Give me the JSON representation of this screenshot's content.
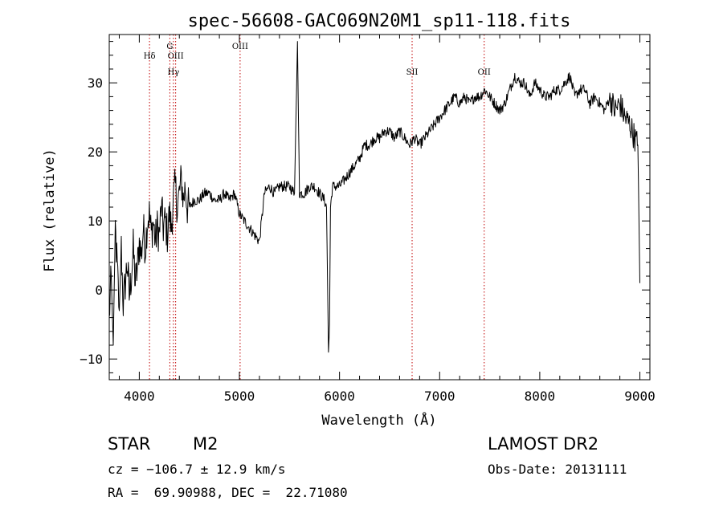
{
  "chart_data": {
    "type": "line",
    "title": "spec-56608-GAC069N20M1_sp11-118.fits",
    "xlabel": "Wavelength (Å)",
    "ylabel": "Flux (relative)",
    "xlim": [
      3700,
      9100
    ],
    "ylim": [
      -13,
      37
    ],
    "x_ticks": [
      4000,
      5000,
      6000,
      7000,
      8000,
      9000
    ],
    "x_tick_labels": [
      "4000",
      "5000",
      "6000",
      "7000",
      "8000",
      "9000"
    ],
    "y_ticks": [
      -10,
      0,
      10,
      20,
      30
    ],
    "y_tick_labels": [
      "−10",
      "0",
      "10",
      "20",
      "30"
    ],
    "grid": false,
    "spectrum": {
      "x": [
        3700,
        3720,
        3740,
        3760,
        3780,
        3800,
        3820,
        3840,
        3860,
        3880,
        3900,
        3920,
        3940,
        3960,
        3980,
        4000,
        4020,
        4040,
        4060,
        4080,
        4100,
        4120,
        4140,
        4160,
        4180,
        4200,
        4220,
        4240,
        4260,
        4280,
        4300,
        4320,
        4340,
        4360,
        4380,
        4400,
        4420,
        4440,
        4460,
        4480,
        4500,
        4550,
        4600,
        4650,
        4700,
        4750,
        4800,
        4850,
        4900,
        4950,
        5000,
        5050,
        5100,
        5150,
        5200,
        5250,
        5300,
        5350,
        5400,
        5450,
        5500,
        5550,
        5580,
        5600,
        5650,
        5700,
        5750,
        5800,
        5850,
        5870,
        5890,
        5900,
        5910,
        5930,
        5960,
        6000,
        6050,
        6100,
        6150,
        6200,
        6250,
        6300,
        6350,
        6400,
        6450,
        6500,
        6550,
        6600,
        6650,
        6700,
        6750,
        6800,
        6850,
        6900,
        6950,
        7000,
        7050,
        7100,
        7150,
        7200,
        7250,
        7300,
        7350,
        7400,
        7450,
        7500,
        7550,
        7600,
        7650,
        7700,
        7750,
        7800,
        7850,
        7900,
        7950,
        8000,
        8050,
        8100,
        8150,
        8200,
        8250,
        8300,
        8350,
        8400,
        8450,
        8500,
        8550,
        8600,
        8650,
        8700,
        8750,
        8800,
        8850,
        8900,
        8950,
        8980,
        9000
      ],
      "y": [
        -4,
        2,
        -8,
        9,
        3,
        -3,
        6,
        -2,
        1,
        4,
        -1,
        2,
        6,
        1,
        3,
        7,
        5,
        9,
        6,
        10,
        11,
        8,
        10,
        7,
        9,
        8,
        12,
        9,
        10,
        8,
        11,
        9,
        13,
        15,
        12,
        14,
        16,
        13,
        15,
        12,
        12,
        13,
        13,
        14,
        14,
        13,
        13,
        14,
        13,
        14,
        11,
        10,
        9,
        8,
        7,
        14,
        15,
        14,
        15,
        15,
        15,
        14,
        36,
        14,
        14,
        15,
        15,
        14,
        13,
        12,
        -9,
        -5,
        12,
        15,
        15,
        15,
        16,
        17,
        18,
        19,
        21,
        21,
        22,
        22,
        23,
        23,
        22,
        23,
        22,
        21,
        22,
        21,
        22,
        23,
        24,
        25,
        26,
        27,
        28,
        27,
        28,
        27,
        28,
        28,
        29,
        28,
        27,
        26,
        27,
        29,
        31,
        30,
        30,
        28,
        30,
        29,
        28,
        28,
        29,
        29,
        30,
        31,
        28,
        29,
        29,
        27,
        28,
        27,
        26,
        28,
        26,
        27,
        25,
        24,
        22,
        21,
        1
      ]
    },
    "lines": [
      {
        "name": "Hδ",
        "x": 4102
      },
      {
        "name": "G",
        "x": 4305
      },
      {
        "name": "OIII",
        "x": 4363
      },
      {
        "name": "Hγ",
        "x": 4341
      },
      {
        "name": "OIII",
        "x": 5007
      },
      {
        "name": "SII",
        "x": 6725
      },
      {
        "name": "OII",
        "x": 7445
      }
    ],
    "colors": {
      "spectrum": "#000000",
      "lines": "#c00000",
      "axes": "#000000"
    }
  },
  "info": {
    "object_type": "STAR",
    "subclass": "M2",
    "survey": "LAMOST DR2",
    "cz": "cz = −106.7 ± 12.9 km/s",
    "obs_date": "Obs-Date: 20131111",
    "radec": "RA =  69.90988, DEC =  22.71080"
  }
}
